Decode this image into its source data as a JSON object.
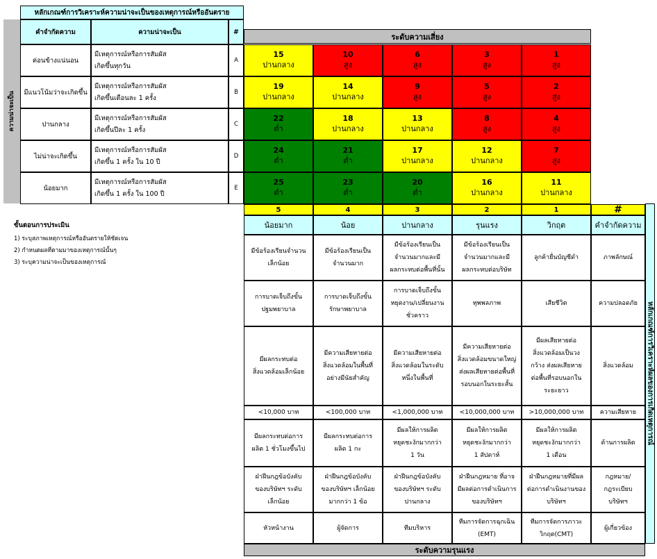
{
  "likelihood_table": {
    "title": "หลักเกณฑ์การวิเคราะห์ความน่าจะเป็นของเหตุการณ์หรืออันตราย",
    "side_label": "ความน่าจะเป็น",
    "headers": {
      "definition": "คำจำกัดความ",
      "likelihood": "ความน่าจะเป็น",
      "hash": "#"
    },
    "rows": [
      {
        "definition": "ค่อนข้างแน่นอน",
        "description": "มีเหตุการณ์หรือการสัมผัส\nเกิดขึ้นทุกวัน",
        "code": "A"
      },
      {
        "definition": "มีแนวโน้มว่าจะเกิดขึ้น",
        "description": "มีเหตุการณ์หรือการสัมผัส\nเกิดขึ้นเดือนละ 1 ครั้ง",
        "code": "B"
      },
      {
        "definition": "ปานกลาง",
        "description": "มีเหตุการณ์หรือการสัมผัส\nเกิดขึ้นปีละ 1 ครั้ง",
        "code": "C"
      },
      {
        "definition": "ไม่น่าจะเกิดขึ้น",
        "description": "มีเหตุการณ์หรือการสัมผัส\nเกิดขึ้น 1 ครั้ง ใน 10 ปี",
        "code": "D"
      },
      {
        "definition": "น้อยมาก",
        "description": "มีเหตุการณ์หรือการสัมผัส\nเกิดขึ้น 1 ครั้ง ใน 100 ปี",
        "code": "E"
      }
    ]
  },
  "risk_matrix": {
    "title": "ระดับความเสี่ยง",
    "rows": [
      [
        {
          "n": "15",
          "label": "ปานกลาง",
          "color": "yellow"
        },
        {
          "n": "10",
          "label": "สูง",
          "color": "red"
        },
        {
          "n": "6",
          "label": "สูง",
          "color": "red"
        },
        {
          "n": "3",
          "label": "สูง",
          "color": "red"
        },
        {
          "n": "1",
          "label": "สูง",
          "color": "red"
        }
      ],
      [
        {
          "n": "19",
          "label": "ปานกลาง",
          "color": "yellow"
        },
        {
          "n": "14",
          "label": "ปานกลาง",
          "color": "yellow"
        },
        {
          "n": "9",
          "label": "สูง",
          "color": "red"
        },
        {
          "n": "5",
          "label": "สูง",
          "color": "red"
        },
        {
          "n": "2",
          "label": "สูง",
          "color": "red"
        }
      ],
      [
        {
          "n": "22",
          "label": "ต่ำ",
          "color": "green"
        },
        {
          "n": "18",
          "label": "ปานกลาง",
          "color": "yellow"
        },
        {
          "n": "13",
          "label": "ปานกลาง",
          "color": "yellow"
        },
        {
          "n": "8",
          "label": "สูง",
          "color": "red"
        },
        {
          "n": "4",
          "label": "สูง",
          "color": "red"
        }
      ],
      [
        {
          "n": "24",
          "label": "ต่ำ",
          "color": "green"
        },
        {
          "n": "21",
          "label": "ต่ำ",
          "color": "green"
        },
        {
          "n": "17",
          "label": "ปานกลาง",
          "color": "yellow"
        },
        {
          "n": "12",
          "label": "ปานกลาง",
          "color": "yellow"
        },
        {
          "n": "7",
          "label": "สูง",
          "color": "red"
        }
      ],
      [
        {
          "n": "25",
          "label": "ต่ำ",
          "color": "green"
        },
        {
          "n": "23",
          "label": "ต่ำ",
          "color": "green"
        },
        {
          "n": "20",
          "label": "ต่ำ",
          "color": "green"
        },
        {
          "n": "16",
          "label": "ปานกลาง",
          "color": "yellow"
        },
        {
          "n": "11",
          "label": "ปานกลาง",
          "color": "yellow"
        }
      ]
    ]
  },
  "severity_table": {
    "numbers": [
      "5",
      "4",
      "3",
      "2",
      "1",
      "#"
    ],
    "headers": [
      "น้อยมาก",
      "น้อย",
      "ปานกลาง",
      "รุนแรง",
      "วิกฤต",
      "คำจำกัดความ"
    ],
    "side_label": "หลักเกณฑ์การวิเคราะห์ผลของการเกิดเหตุการณ์",
    "rows": [
      [
        "มีข้อร้องเรียนจำนวน\nเล็กน้อย",
        "มีข้อร้องเรียนเป็น\nจำนวนมาก",
        "มีข้อร้องเรียนเป็น\nจำนวนมากและมี\nผลกระทบต่อพื้นที่นั้น",
        "มีข้อร้องเรียนเป็น\nจำนวนมากและมี\nผลกระทบต่อบริษัท",
        "ลูกค้ายื่นบัญชีดำ",
        "ภาพลักษณ์"
      ],
      [
        "การบาดเจ็บถึงขั้น\nปฐมพยาบาล",
        "การบาดเจ็บถึงขั้น\nรักษาพยาบาล",
        "การบาดเจ็บถึงขั้น\nหยุดงาน/เปลี่ยนงาน\nชั่วคราว",
        "ทุพพลภาพ",
        "เสียชีวิต",
        "ความปลอดภัย"
      ],
      [
        "มีผลกระทบต่อ\nสิ่งแวดล้อมเล็กน้อย",
        "มีความเสียหายต่อ\nสิ่งแวดล้อมในพื้นที่\nอย่างมีนัยสำคัญ",
        "มีความเสียหายต่อ\nสิ่งแวดล้อมในระดับ\nหนึ่งในพื้นที่",
        "มีความเสียหายต่อ\nสิ่งแวดล้อมขนาดใหญ่\nส่งผลเสียหายต่อพื้นที่\nรอบนอกในระยะสั้น",
        "มีผลเสียหายต่อ\nสิ่งแวดล้อมเป็นวง\nกว้าง ส่งผลเสียหาย\nต่อพื้นที่รอบนอกใน\nระยะยาว",
        "สิ่งแวดล้อม"
      ],
      [
        "<10,000 บาท",
        "<100,000 บาท",
        "<1,000,000 บาท",
        "<10,000,000 บาท",
        ">10,000,000 บาท",
        "ความเสียหาย"
      ],
      [
        "มีผลกระทบต่อการ\nผลิต 1 ชั่วโมงขึ้นไป",
        "มีผลกระทบต่อการ\nผลิต 1 กะ",
        "มีผลให้การผลิต\nหยุดชะงักมากกว่า\n1 วัน",
        "มีผลให้การผลิต\nหยุดชะงักมากกว่า\n1 สัปดาห์",
        "มีผลให้การผลิต\nหยุดชะงักมากกว่า\n1 เดือน",
        "ด้านการผลิต"
      ],
      [
        "ฝ่าฝืนกฎข้อบังคับ\nของบริษัทฯ ระดับ\nเล็กน้อย",
        "ฝ่าฝืนกฎข้อบังคับ\nของบริษัทฯ เล็กน้อย\nมากกว่า 1 ข้อ",
        "ฝ่าฝืนกฎข้อบังคับ\nของบริษัทฯ ระดับ\nปานกลาง",
        "ฝ่าฝืนกฎหมาย ที่อาจ\nมีผลต่อการดำเนินการ\nของบริษัทฯ",
        "ฝ่าฝืนกฎหมายที่มีผล\nต่อการดำเนินงานของ\nบริษัทฯ",
        "กฎหมาย/\nกฎระเบียบ\nบริษัทฯ"
      ],
      [
        "หัวหน้างาน",
        "ผู้จัดการ",
        "ทีมบริหาร",
        "ทีมการจัดการฉุกเฉิน\n(EMT)",
        "ทีมการจัดการภาวะ\nวิกฤต(CMT)",
        "ผู้เกี่ยวข้อง"
      ]
    ],
    "footer": "ระดับความรุนแรง"
  },
  "procedure": {
    "title": "ขั้นตอนการประเมิน",
    "steps": [
      "1) ระบุสภาพเหตุการณ์หรืออันตรายให้ชัดเจน",
      "2) กำหนดผลที่ตามมาของเหตุการณ์นั้นๆ",
      "3) ระบุความน่าจะเป็นของเหตุการณ์"
    ]
  }
}
